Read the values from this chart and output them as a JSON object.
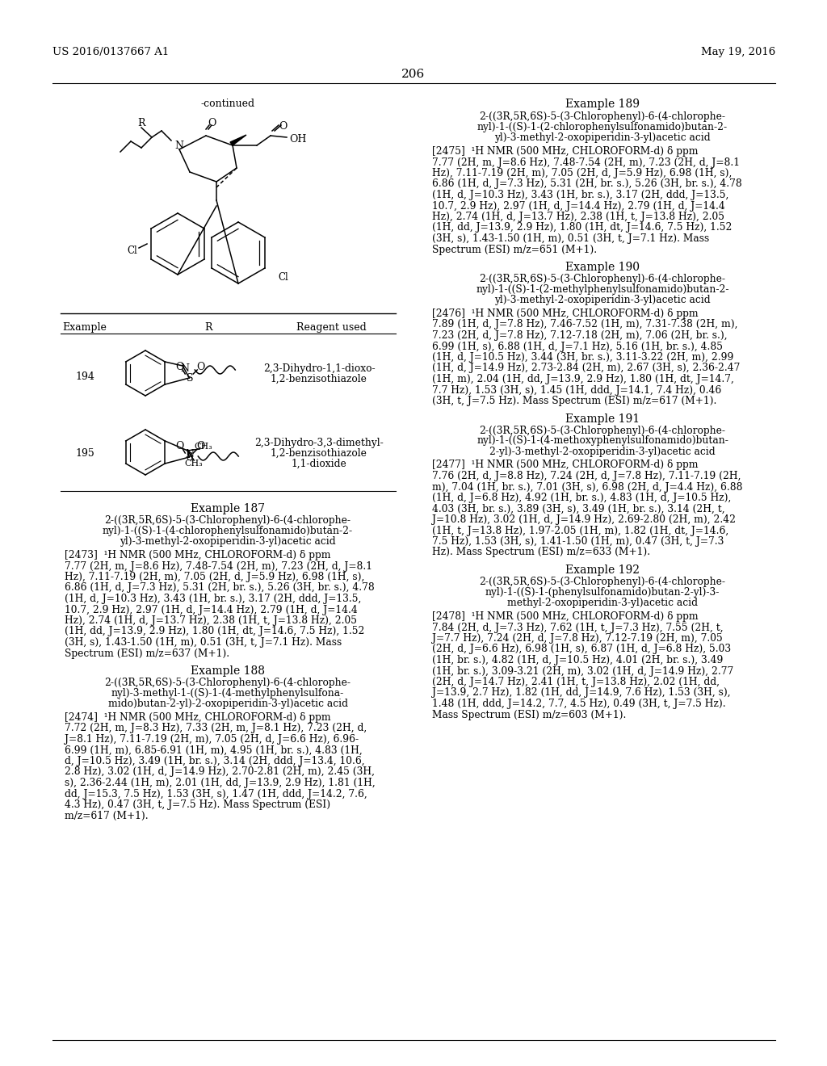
{
  "page_number": "206",
  "patent_number": "US 2016/0137667 A1",
  "patent_date": "May 19, 2016",
  "background_color": "#ffffff",
  "text_color": "#000000",
  "continued_label": "-continued",
  "table_header": [
    "Example",
    "R",
    "Reagent used"
  ],
  "row_194_example": "194",
  "row_194_reagent": "2,3-Dihydro-1,1-dioxo-\n1,2-benzisothiazole",
  "row_195_example": "195",
  "row_195_reagent": "2,3-Dihydro-3,3-dimethyl-\n1,2-benzisothiazole\n1,1-dioxide",
  "example_187_title": "Example 187",
  "example_187_name_lines": [
    "2-((3R,5R,6S)-5-(3-Chlorophenyl)-6-(4-chlorophe-",
    "nyl)-1-((S)-1-(4-chlorophenylsulfonamido)butan-2-",
    "yl)-3-methyl-2-oxopiperidin-3-yl)acetic acid"
  ],
  "example_187_nmr_lines": [
    "[2473]  ¹H NMR (500 MHz, CHLOROFORM-d) δ ppm",
    "7.77 (2H, m, J=8.6 Hz), 7.48-7.54 (2H, m), 7.23 (2H, d, J=8.1",
    "Hz), 7.11-7.19 (2H, m), 7.05 (2H, d, J=5.9 Hz), 6.98 (1H, s),",
    "6.86 (1H, d, J=7.3 Hz), 5.31 (2H, br. s.), 5.26 (3H, br. s.), 4.78",
    "(1H, d, J=10.3 Hz), 3.43 (1H, br. s.), 3.17 (2H, ddd, J=13.5,",
    "10.7, 2.9 Hz), 2.97 (1H, d, J=14.4 Hz), 2.79 (1H, d, J=14.4",
    "Hz), 2.74 (1H, d, J=13.7 Hz), 2.38 (1H, t, J=13.8 Hz), 2.05",
    "(1H, dd, J=13.9, 2.9 Hz), 1.80 (1H, dt, J=14.6, 7.5 Hz), 1.52",
    "(3H, s), 1.43-1.50 (1H, m), 0.51 (3H, t, J=7.1 Hz). Mass",
    "Spectrum (ESI) m/z=637 (M+1)."
  ],
  "example_188_title": "Example 188",
  "example_188_name_lines": [
    "2-((3R,5R,6S)-5-(3-Chlorophenyl)-6-(4-chlorophe-",
    "nyl)-3-methyl-1-((S)-1-(4-methylphenylsulfona-",
    "mido)butan-2-yl)-2-oxopiperidin-3-yl)acetic acid"
  ],
  "example_188_nmr_lines": [
    "[2474]  ¹H NMR (500 MHz, CHLOROFORM-d) δ ppm",
    "7.72 (2H, m, J=8.3 Hz), 7.33 (2H, m, J=8.1 Hz), 7.23 (2H, d,",
    "J=8.1 Hz), 7.11-7.19 (2H, m), 7.05 (2H, d, J=6.6 Hz), 6.96-",
    "6.99 (1H, m), 6.85-6.91 (1H, m), 4.95 (1H, br. s.), 4.83 (1H,",
    "d, J=10.5 Hz), 3.49 (1H, br. s.), 3.14 (2H, ddd, J=13.4, 10.6,",
    "2.8 Hz), 3.02 (1H, d, J=14.9 Hz), 2.70-2.81 (2H, m), 2.45 (3H,",
    "s), 2.36-2.44 (1H, m), 2.01 (1H, dd, J=13.9, 2.9 Hz), 1.81 (1H,",
    "dd, J=15.3, 7.5 Hz), 1.53 (3H, s), 1.47 (1H, ddd, J=14.2, 7.6,",
    "4.3 Hz), 0.47 (3H, t, J=7.5 Hz). Mass Spectrum (ESI)",
    "m/z=617 (M+1)."
  ],
  "example_189_title": "Example 189",
  "example_189_name_lines": [
    "2-((3R,5R,6S)-5-(3-Chlorophenyl)-6-(4-chlorophe-",
    "nyl)-1-((S)-1-(2-chlorophenylsulfonamido)butan-2-",
    "yl)-3-methyl-2-oxopiperidin-3-yl)acetic acid"
  ],
  "example_189_nmr_lines": [
    "[2475]  ¹H NMR (500 MHz, CHLOROFORM-d) δ ppm",
    "7.77 (2H, m, J=8.6 Hz), 7.48-7.54 (2H, m), 7.23 (2H, d, J=8.1",
    "Hz), 7.11-7.19 (2H, m), 7.05 (2H, d, J=5.9 Hz), 6.98 (1H, s),",
    "6.86 (1H, d, J=7.3 Hz), 5.31 (2H, br. s.), 5.26 (3H, br. s.), 4.78",
    "(1H, d, J=10.3 Hz), 3.43 (1H, br. s.), 3.17 (2H, ddd, J=13.5,",
    "10.7, 2.9 Hz), 2.97 (1H, d, J=14.4 Hz), 2.79 (1H, d, J=14.4",
    "Hz), 2.74 (1H, d, J=13.7 Hz), 2.38 (1H, t, J=13.8 Hz), 2.05",
    "(1H, dd, J=13.9, 2.9 Hz), 1.80 (1H, dt, J=14.6, 7.5 Hz), 1.52",
    "(3H, s), 1.43-1.50 (1H, m), 0.51 (3H, t, J=7.1 Hz). Mass",
    "Spectrum (ESI) m/z=651 (M+1)."
  ],
  "example_190_title": "Example 190",
  "example_190_name_lines": [
    "2-((3R,5R,6S)-5-(3-Chlorophenyl)-6-(4-chlorophe-",
    "nyl)-1-((S)-1-(2-methylphenylsulfonamido)butan-2-",
    "yl)-3-methyl-2-oxopiperidin-3-yl)acetic acid"
  ],
  "example_190_nmr_lines": [
    "[2476]  ¹H NMR (500 MHz, CHLOROFORM-d) δ ppm",
    "7.89 (1H, d, J=7.8 Hz), 7.46-7.52 (1H, m), 7.31-7.38 (2H, m),",
    "7.23 (2H, d, J=7.8 Hz), 7.12-7.18 (2H, m), 7.06 (2H, br. s.),",
    "6.99 (1H, s), 6.88 (1H, d, J=7.1 Hz), 5.16 (1H, br. s.), 4.85",
    "(1H, d, J=10.5 Hz), 3.44 (3H, br. s.), 3.11-3.22 (2H, m), 2.99",
    "(1H, d, J=14.9 Hz), 2.73-2.84 (2H, m), 2.67 (3H, s), 2.36-2.47",
    "(1H, m), 2.04 (1H, dd, J=13.9, 2.9 Hz), 1.80 (1H, dt, J=14.7,",
    "7.7 Hz), 1.53 (3H, s), 1.45 (1H, ddd, J=14.1, 7.4 Hz), 0.46",
    "(3H, t, J=7.5 Hz). Mass Spectrum (ESI) m/z=617 (M+1)."
  ],
  "example_191_title": "Example 191",
  "example_191_name_lines": [
    "2-((3R,5R,6S)-5-(3-Chlorophenyl)-6-(4-chlorophe-",
    "nyl)-1-((S)-1-(4-methoxyphenylsulfonamido)butan-",
    "2-yl)-3-methyl-2-oxopiperidin-3-yl)acetic acid"
  ],
  "example_191_nmr_lines": [
    "[2477]  ¹H NMR (500 MHz, CHLOROFORM-d) δ ppm",
    "7.76 (2H, d, J=8.8 Hz), 7.24 (2H, d, J=7.8 Hz), 7.11-7.19 (2H,",
    "m), 7.04 (1H, br. s.), 7.01 (3H, s), 6.98 (2H, d, J=4.4 Hz), 6.88",
    "(1H, d, J=6.8 Hz), 4.92 (1H, br. s.), 4.83 (1H, d, J=10.5 Hz),",
    "4.03 (3H, br. s.), 3.89 (3H, s), 3.49 (1H, br. s.), 3.14 (2H, t,",
    "J=10.8 Hz), 3.02 (1H, d, J=14.9 Hz), 2.69-2.80 (2H, m), 2.42",
    "(1H, t, J=13.8 Hz), 1.97-2.05 (1H, m), 1.82 (1H, dt, J=14.6,",
    "7.5 Hz), 1.53 (3H, s), 1.41-1.50 (1H, m), 0.47 (3H, t, J=7.3",
    "Hz). Mass Spectrum (ESI) m/z=633 (M+1)."
  ],
  "example_192_title": "Example 192",
  "example_192_name_lines": [
    "2-((3R,5R,6S)-5-(3-Chlorophenyl)-6-(4-chlorophe-",
    "nyl)-1-((S)-1-(phenylsulfonamido)butan-2-yl)-3-",
    "methyl-2-oxopiperidin-3-yl)acetic acid"
  ],
  "example_192_nmr_lines": [
    "[2478]  ¹H NMR (500 MHz, CHLOROFORM-d) δ ppm",
    "7.84 (2H, d, J=7.3 Hz), 7.62 (1H, t, J=7.3 Hz), 7.55 (2H, t,",
    "J=7.7 Hz), 7.24 (2H, d, J=7.8 Hz), 7.12-7.19 (2H, m), 7.05",
    "(2H, d, J=6.6 Hz), 6.98 (1H, s), 6.87 (1H, d, J=6.8 Hz), 5.03",
    "(1H, br. s.), 4.82 (1H, d, J=10.5 Hz), 4.01 (2H, br. s.), 3.49",
    "(1H, br. s.), 3.09-3.21 (2H, m), 3.02 (1H, d, J=14.9 Hz), 2.77",
    "(2H, d, J=14.7 Hz), 2.41 (1H, t, J=13.8 Hz), 2.02 (1H, dd,",
    "J=13.9, 2.7 Hz), 1.82 (1H, dd, J=14.9, 7.6 Hz), 1.53 (3H, s),",
    "1.48 (1H, ddd, J=14.2, 7.7, 4.5 Hz), 0.49 (3H, t, J=7.5 Hz).",
    "Mass Spectrum (ESI) m/z=603 (M+1)."
  ]
}
